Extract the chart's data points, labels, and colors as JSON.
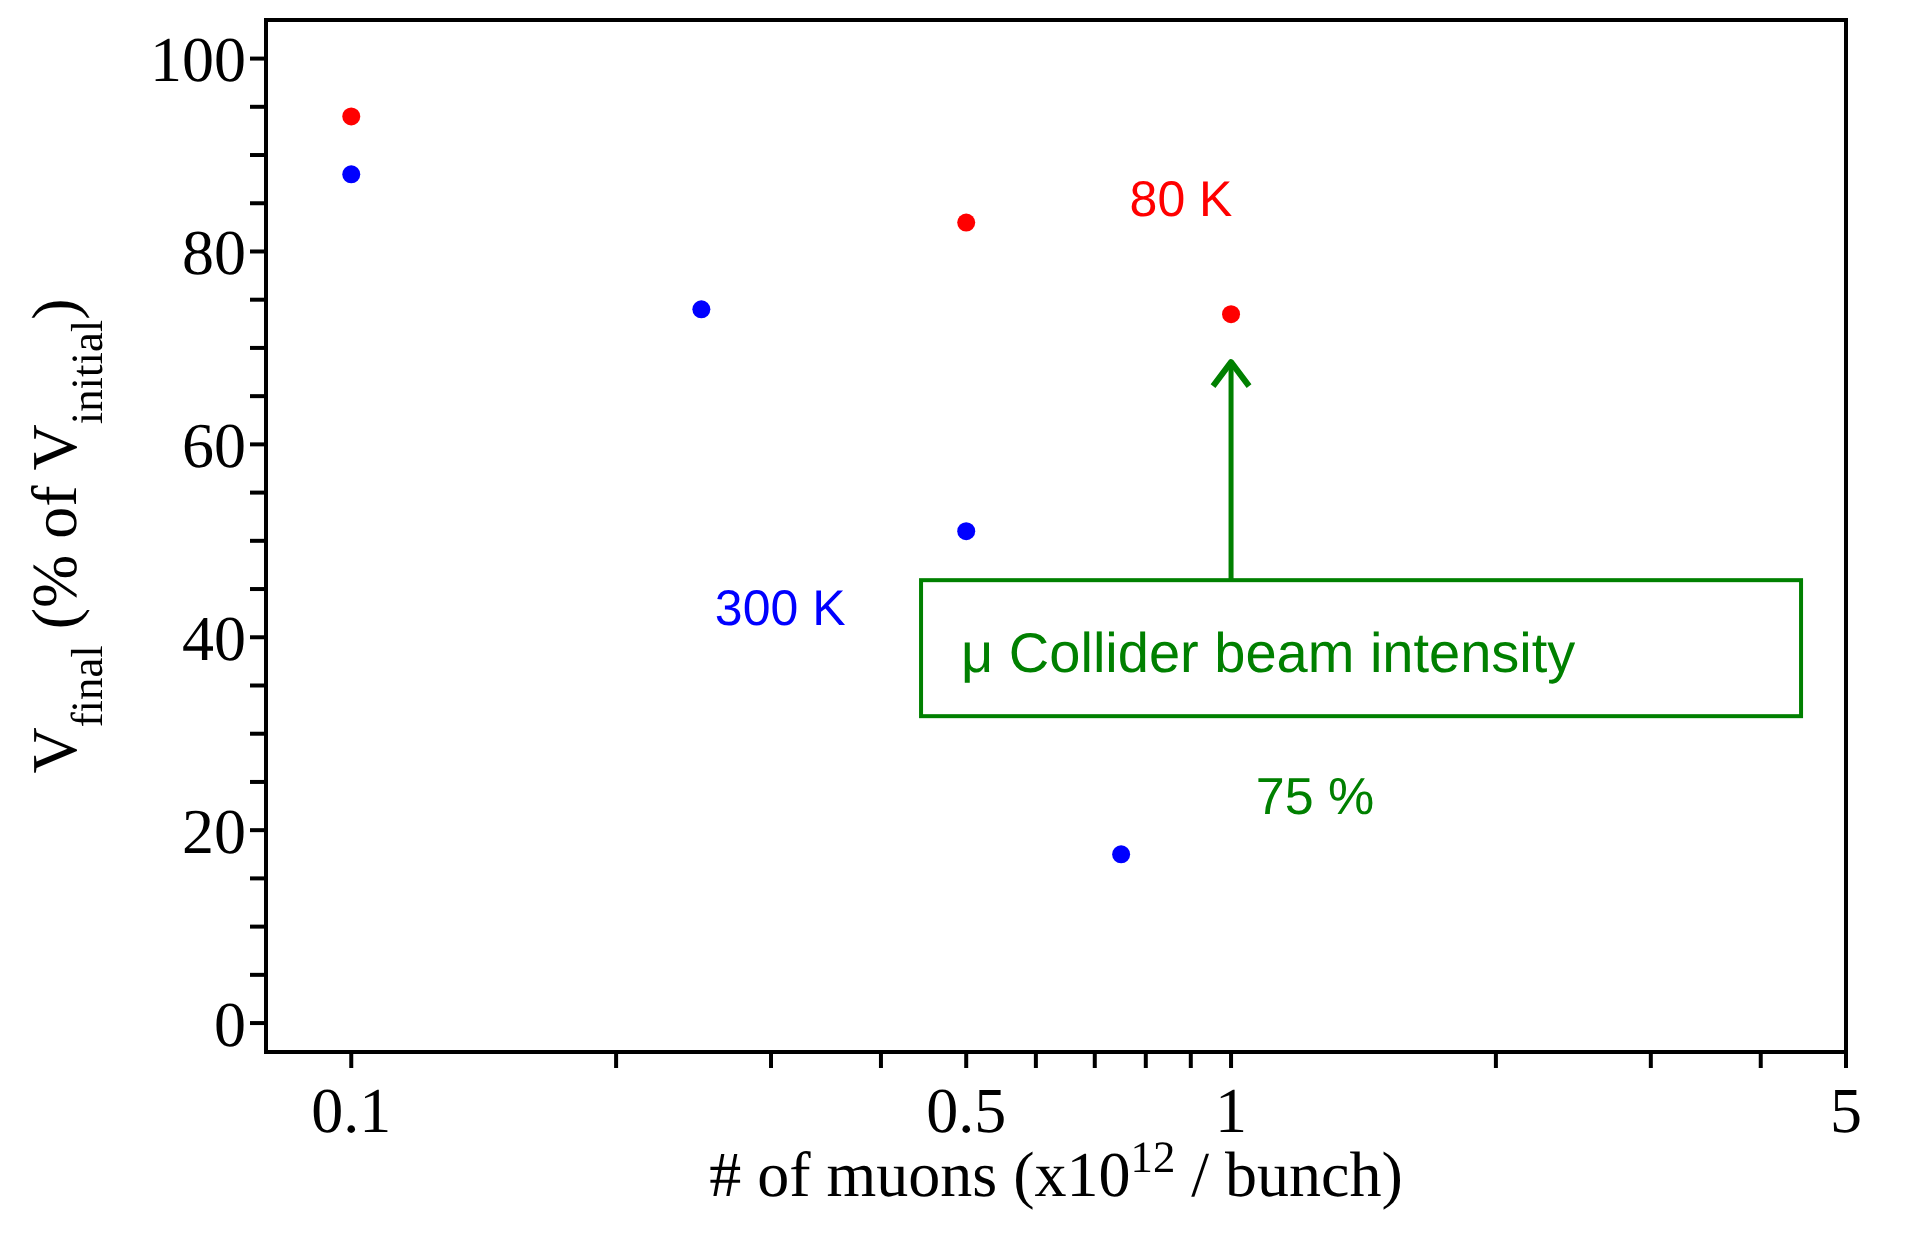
{
  "chart_data": {
    "type": "scatter",
    "xlabel": "# of muons (x10$^{12}$ / bunch)",
    "ylabel": "V$_{final}$ (% of V$_{initial}$)",
    "series": [
      {
        "name": "80 K",
        "color": "#ff0000",
        "x": [
          0.1,
          0.5,
          1
        ],
        "values": [
          94,
          83,
          73.5
        ]
      },
      {
        "name": "300 K",
        "color": "#0000ff",
        "x": [
          0.1,
          0.25,
          0.5,
          0.75
        ],
        "values": [
          88,
          74,
          51,
          17.5
        ]
      }
    ],
    "log": "x",
    "marker": "circle",
    "xlim": [
      0.08,
      5
    ],
    "xticks": [
      0.1,
      {
        "value": 0.2,
        "label": null
      },
      {
        "value": 0.3,
        "label": null
      },
      {
        "value": 0.4,
        "label": null
      },
      0.5,
      {
        "value": 0.6,
        "label": null
      },
      {
        "value": 0.7,
        "label": null
      },
      {
        "value": 0.8,
        "label": null
      },
      {
        "value": 0.9,
        "label": null
      },
      1,
      {
        "value": 2,
        "label": null
      },
      {
        "value": 3,
        "label": null
      },
      {
        "value": 4,
        "label": null
      },
      5
    ],
    "ylim": [
      -3,
      104
    ],
    "yticks": [
      0,
      {
        "value": 5,
        "label": null
      },
      {
        "value": 10,
        "label": null
      },
      {
        "value": 15,
        "label": null
      },
      20,
      {
        "value": 25,
        "label": null
      },
      {
        "value": 30,
        "label": null
      },
      {
        "value": 35,
        "label": null
      },
      40,
      {
        "value": 45,
        "label": null
      },
      {
        "value": 50,
        "label": null
      },
      {
        "value": 55,
        "label": null
      },
      60,
      {
        "value": 65,
        "label": null
      },
      {
        "value": 70,
        "label": null
      },
      {
        "value": 75,
        "label": null
      },
      80,
      {
        "value": 85,
        "label": null
      },
      {
        "value": 90,
        "label": null
      },
      {
        "value": 95,
        "label": null
      },
      100
    ],
    "annotations": [
      "μ Collider beam intensity",
      "75 %"
    ]
  }
}
